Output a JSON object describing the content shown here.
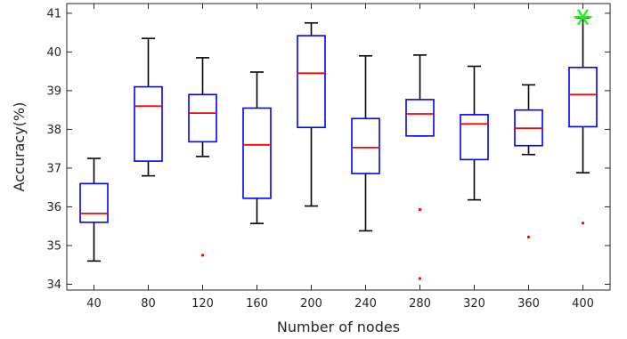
{
  "chart_data": {
    "type": "box",
    "xlabel": "Number of nodes",
    "ylabel": "Accuracy(%)",
    "ylim": [
      33.85,
      41.25
    ],
    "yticks": [
      34,
      35,
      36,
      37,
      38,
      39,
      40,
      41
    ],
    "grid": false,
    "colors": {
      "box": "#0000ff",
      "median": "#ff0000",
      "whisker": "#000000",
      "outlier": "#ff0000",
      "best_marker": "#22ee22"
    },
    "categories": [
      "40",
      "80",
      "120",
      "160",
      "200",
      "240",
      "280",
      "320",
      "360",
      "400"
    ],
    "boxes": [
      {
        "whisker_low": 34.6,
        "q1": 35.6,
        "median": 35.83,
        "q3": 36.6,
        "whisker_high": 37.25,
        "outliers": []
      },
      {
        "whisker_low": 36.8,
        "q1": 37.18,
        "median": 38.6,
        "q3": 39.1,
        "whisker_high": 40.35,
        "outliers": []
      },
      {
        "whisker_low": 37.3,
        "q1": 37.68,
        "median": 38.42,
        "q3": 38.9,
        "whisker_high": 39.85,
        "outliers": [
          34.75
        ]
      },
      {
        "whisker_low": 35.57,
        "q1": 36.22,
        "median": 37.6,
        "q3": 38.55,
        "whisker_high": 39.48,
        "outliers": []
      },
      {
        "whisker_low": 36.02,
        "q1": 38.05,
        "median": 39.45,
        "q3": 40.42,
        "whisker_high": 40.75,
        "outliers": []
      },
      {
        "whisker_low": 35.38,
        "q1": 36.86,
        "median": 37.53,
        "q3": 38.28,
        "whisker_high": 39.9,
        "outliers": []
      },
      {
        "whisker_low": 37.83,
        "q1": 37.83,
        "median": 38.4,
        "q3": 38.77,
        "whisker_high": 39.92,
        "outliers": [
          35.93,
          34.15
        ]
      },
      {
        "whisker_low": 36.18,
        "q1": 37.22,
        "median": 38.14,
        "q3": 38.38,
        "whisker_high": 39.63,
        "outliers": []
      },
      {
        "whisker_low": 37.35,
        "q1": 37.58,
        "median": 38.03,
        "q3": 38.5,
        "whisker_high": 39.15,
        "outliers": [
          35.22
        ]
      },
      {
        "whisker_low": 36.88,
        "q1": 38.07,
        "median": 38.9,
        "q3": 39.6,
        "whisker_high": 40.88,
        "outliers": [
          35.58
        ]
      }
    ],
    "best": {
      "category": "400",
      "value": 40.9
    }
  }
}
